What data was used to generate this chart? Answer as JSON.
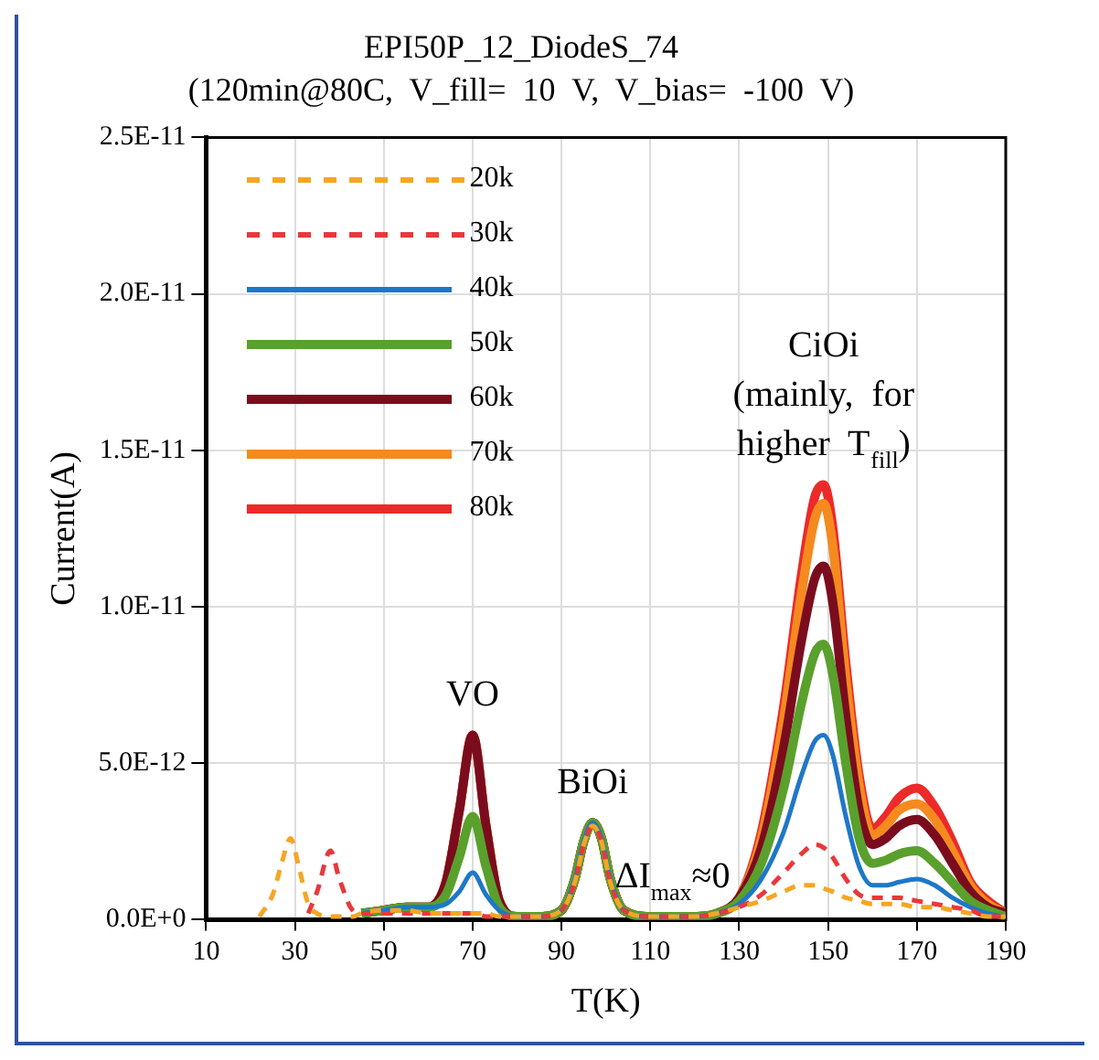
{
  "chart_data": {
    "type": "line",
    "title": "EPI50P_12_DiodeS_74",
    "subtitle": "(120min@80C,  V_fill=  10  V,  V_bias=  -100  V)",
    "xlabel": "T(K)",
    "ylabel": "Current(A)",
    "x": [
      22,
      25,
      27,
      29,
      31,
      33,
      35,
      38,
      40,
      43,
      45,
      50,
      55,
      60,
      64,
      67,
      70,
      73,
      76,
      80,
      85,
      90,
      93,
      95,
      97,
      99,
      101,
      104,
      110,
      120,
      125,
      130,
      135,
      140,
      144,
      147,
      149,
      151,
      154,
      157,
      160,
      163,
      166,
      170,
      174,
      178,
      182,
      186,
      190
    ],
    "series": [
      {
        "name": "20k",
        "color": "#f5a623",
        "line_style": "dashed",
        "values": [
          1e-13,
          8e-13,
          1.8e-12,
          2.6e-12,
          1.6e-12,
          5e-13,
          2e-13,
          1e-13,
          1e-13,
          1e-13,
          2e-13,
          3e-13,
          3e-13,
          2e-13,
          2e-13,
          2e-13,
          2e-13,
          2e-13,
          1e-13,
          1e-13,
          1e-13,
          3e-13,
          1.2e-12,
          2.4e-12,
          3e-12,
          2.5e-12,
          1.2e-12,
          3e-13,
          1e-13,
          1e-13,
          2e-13,
          4e-13,
          6e-13,
          9e-13,
          1.1e-12,
          1.1e-12,
          1e-12,
          9e-13,
          7e-13,
          6e-13,
          5e-13,
          5e-13,
          5e-13,
          4e-13,
          4e-13,
          3e-13,
          2e-13,
          1e-13,
          1e-13
        ]
      },
      {
        "name": "30k",
        "color": "#e8383d",
        "line_style": "dashed",
        "values": [
          null,
          null,
          null,
          null,
          null,
          2e-13,
          9e-13,
          2.2e-12,
          1.3e-12,
          3e-13,
          2e-13,
          2e-13,
          2e-13,
          2e-13,
          2e-13,
          2e-13,
          2e-13,
          1e-13,
          1e-13,
          1e-13,
          1e-13,
          3e-13,
          1.2e-12,
          2.4e-12,
          3e-12,
          2.5e-12,
          1.2e-12,
          3e-13,
          1e-13,
          1e-13,
          2e-13,
          4e-13,
          8e-13,
          1.5e-12,
          2.1e-12,
          2.4e-12,
          2.3e-12,
          2e-12,
          1.3e-12,
          8e-13,
          7e-13,
          7e-13,
          7e-13,
          6e-13,
          5e-13,
          4e-13,
          3e-13,
          1e-13,
          1e-13
        ]
      },
      {
        "name": "40k",
        "color": "#1f77c8",
        "line_style": "solid",
        "values": [
          null,
          null,
          null,
          null,
          null,
          null,
          null,
          null,
          null,
          null,
          2e-13,
          3e-13,
          4e-13,
          4e-13,
          5e-13,
          9e-13,
          1.5e-12,
          8e-13,
          3e-13,
          1e-13,
          1e-13,
          3e-13,
          1.3e-12,
          2.5e-12,
          3.1e-12,
          2.6e-12,
          1.3e-12,
          3e-13,
          1e-13,
          1e-13,
          2e-13,
          5e-13,
          1.3e-12,
          2.8e-12,
          4.6e-12,
          5.7e-12,
          5.9e-12,
          5.3e-12,
          3.3e-12,
          1.7e-12,
          1.1e-12,
          1.1e-12,
          1.2e-12,
          1.3e-12,
          1.1e-12,
          7e-13,
          4e-13,
          2e-13,
          1e-13
        ]
      },
      {
        "name": "50k",
        "color": "#5aa02c",
        "line_style": "solid",
        "values": [
          null,
          null,
          null,
          null,
          null,
          null,
          null,
          null,
          null,
          null,
          2e-13,
          3e-13,
          4e-13,
          4e-13,
          8e-13,
          2e-12,
          3.3e-12,
          1.7e-12,
          4e-13,
          1e-13,
          1e-13,
          3e-13,
          1.3e-12,
          2.5e-12,
          3.1e-12,
          2.6e-12,
          1.3e-12,
          3e-13,
          1e-13,
          1e-13,
          2e-13,
          6e-13,
          1.8e-12,
          4.2e-12,
          6.9e-12,
          8.5e-12,
          8.8e-12,
          7.9e-12,
          5e-12,
          2.6e-12,
          1.8e-12,
          1.9e-12,
          2.1e-12,
          2.2e-12,
          1.8e-12,
          1.2e-12,
          6e-13,
          3e-13,
          1e-13
        ]
      },
      {
        "name": "60k",
        "color": "#7b0c1e",
        "line_style": "solid",
        "values": [
          null,
          null,
          null,
          null,
          null,
          null,
          null,
          null,
          null,
          null,
          2e-13,
          3e-13,
          4e-13,
          4e-13,
          1.2e-12,
          3.5e-12,
          5.9e-12,
          3e-12,
          6e-13,
          1e-13,
          1e-13,
          3e-13,
          1.3e-12,
          2.5e-12,
          3.1e-12,
          2.6e-12,
          1.3e-12,
          3e-13,
          1e-13,
          1e-13,
          2e-13,
          7e-13,
          2.3e-12,
          5.5e-12,
          8.9e-12,
          1.09e-11,
          1.13e-11,
          1.02e-11,
          6.5e-12,
          3.5e-12,
          2.4e-12,
          2.6e-12,
          3e-12,
          3.2e-12,
          2.7e-12,
          1.8e-12,
          9e-13,
          4e-13,
          2e-13
        ]
      },
      {
        "name": "70k",
        "color": "#f58a1f",
        "line_style": "solid",
        "values": [
          null,
          null,
          null,
          null,
          null,
          null,
          null,
          null,
          null,
          null,
          2e-13,
          3e-13,
          4e-13,
          4e-13,
          1.2e-12,
          3.5e-12,
          5.9e-12,
          3e-12,
          6e-13,
          1e-13,
          1e-13,
          3e-13,
          1.3e-12,
          2.5e-12,
          3.1e-12,
          2.6e-12,
          1.3e-12,
          3e-13,
          1e-13,
          1e-13,
          2e-13,
          7e-13,
          2.6e-12,
          6.4e-12,
          1.04e-11,
          1.28e-11,
          1.33e-11,
          1.2e-11,
          7.7e-12,
          4.3e-12,
          2.7e-12,
          3e-12,
          3.5e-12,
          3.7e-12,
          3.2e-12,
          2.2e-12,
          1.1e-12,
          5e-13,
          2e-13
        ]
      },
      {
        "name": "80k",
        "color": "#ec2a2a",
        "line_style": "solid",
        "values": [
          null,
          null,
          null,
          null,
          null,
          null,
          null,
          null,
          null,
          null,
          2e-13,
          3e-13,
          4e-13,
          4e-13,
          1.2e-12,
          3.5e-12,
          5.9e-12,
          3e-12,
          6e-13,
          1e-13,
          1e-13,
          3e-13,
          1.3e-12,
          2.5e-12,
          3.1e-12,
          2.6e-12,
          1.3e-12,
          3e-13,
          1e-13,
          1e-13,
          2e-13,
          7e-13,
          2.8e-12,
          6.8e-12,
          1.1e-11,
          1.35e-11,
          1.39e-11,
          1.26e-11,
          8.2e-12,
          4.6e-12,
          2.9e-12,
          3.3e-12,
          3.9e-12,
          4.2e-12,
          3.6e-12,
          2.5e-12,
          1.2e-12,
          6e-13,
          2e-13
        ]
      }
    ],
    "xlim": [
      10,
      190
    ],
    "xticks": [
      10,
      30,
      50,
      70,
      90,
      110,
      130,
      150,
      170,
      190
    ],
    "ylim": [
      0,
      2.5e-11
    ],
    "yticks": [
      {
        "value": 0,
        "label": "0.0E+0"
      },
      {
        "value": 5e-12,
        "label": "5.0E-12"
      },
      {
        "value": 1e-11,
        "label": "1.0E-11"
      },
      {
        "value": 1.5e-11,
        "label": "1.5E-11"
      },
      {
        "value": 2e-11,
        "label": "2.0E-11"
      },
      {
        "value": 2.5e-11,
        "label": "2.5E-11"
      }
    ],
    "grid": true,
    "legend": "top left",
    "marker": "none",
    "annotations": [
      {
        "text": "VO",
        "x": 70,
        "y": 5.9e-12
      },
      {
        "text": "BiOi",
        "x": 97,
        "y": 3.1e-12
      },
      {
        "text": "ΔI$_{max}$≈0",
        "x": 115,
        "y": 1e-13
      },
      {
        "text": "CiOi\n(mainly,  for\nhigher  T$_{fill}$)",
        "x": 149,
        "y": 1.39e-11
      }
    ]
  }
}
